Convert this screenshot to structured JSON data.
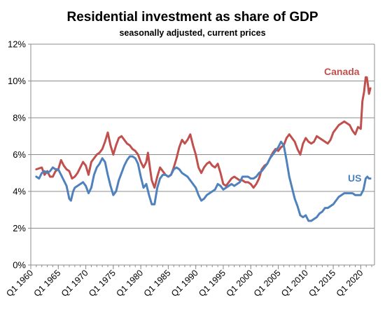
{
  "chart_data": {
    "type": "line",
    "title": "Residential investment as share of GDP",
    "subtitle": "seasonally adjusted, current prices",
    "xlabel": "",
    "ylabel": "",
    "xlim": [
      1960.0,
      2022.5
    ],
    "ylim": [
      0,
      12
    ],
    "y_ticks": [
      0,
      2,
      4,
      6,
      8,
      10,
      12
    ],
    "y_tick_labels": [
      "0%",
      "2%",
      "4%",
      "6%",
      "8%",
      "10%",
      "12%"
    ],
    "x_ticks": [
      1960,
      1965,
      1970,
      1975,
      1980,
      1985,
      1990,
      1995,
      2000,
      2005,
      2010,
      2015,
      2020
    ],
    "x_tick_labels": [
      "Q1 1960",
      "Q1 1965",
      "Q1 1970",
      "Q1 1975",
      "Q1 1980",
      "Q1 1985",
      "Q1 1990",
      "Q1 1995",
      "Q1 2000",
      "Q1 2005",
      "Q1 2010",
      "Q1 2015",
      "Q1 2020"
    ],
    "grid": "horizontal",
    "series": [
      {
        "name": "Canada",
        "color": "#c0504d",
        "points": [
          [
            1961.0,
            5.2
          ],
          [
            1962.0,
            5.3
          ],
          [
            1962.5,
            4.9
          ],
          [
            1963.0,
            5.1
          ],
          [
            1963.5,
            4.8
          ],
          [
            1964.0,
            4.8
          ],
          [
            1964.5,
            5.1
          ],
          [
            1965.0,
            5.2
          ],
          [
            1965.5,
            5.7
          ],
          [
            1966.0,
            5.4
          ],
          [
            1966.5,
            5.2
          ],
          [
            1967.0,
            5.1
          ],
          [
            1967.5,
            4.7
          ],
          [
            1968.0,
            4.8
          ],
          [
            1968.5,
            5.0
          ],
          [
            1969.0,
            5.3
          ],
          [
            1969.5,
            5.6
          ],
          [
            1970.0,
            5.4
          ],
          [
            1970.5,
            4.9
          ],
          [
            1971.0,
            5.6
          ],
          [
            1971.5,
            5.8
          ],
          [
            1972.0,
            6.0
          ],
          [
            1972.5,
            6.1
          ],
          [
            1973.0,
            6.3
          ],
          [
            1973.5,
            6.7
          ],
          [
            1974.0,
            7.2
          ],
          [
            1974.5,
            6.5
          ],
          [
            1975.0,
            6.0
          ],
          [
            1975.5,
            6.5
          ],
          [
            1976.0,
            6.9
          ],
          [
            1976.5,
            7.0
          ],
          [
            1977.0,
            6.8
          ],
          [
            1977.5,
            6.6
          ],
          [
            1978.0,
            6.5
          ],
          [
            1978.5,
            6.3
          ],
          [
            1979.0,
            6.2
          ],
          [
            1979.5,
            6.0
          ],
          [
            1980.0,
            5.6
          ],
          [
            1980.5,
            5.3
          ],
          [
            1981.0,
            5.6
          ],
          [
            1981.3,
            6.1
          ],
          [
            1981.7,
            5.2
          ],
          [
            1982.0,
            4.6
          ],
          [
            1982.5,
            4.2
          ],
          [
            1983.0,
            4.8
          ],
          [
            1983.5,
            5.3
          ],
          [
            1984.0,
            5.1
          ],
          [
            1984.5,
            4.9
          ],
          [
            1985.0,
            4.8
          ],
          [
            1985.5,
            4.9
          ],
          [
            1986.0,
            5.3
          ],
          [
            1986.5,
            5.8
          ],
          [
            1987.0,
            6.4
          ],
          [
            1987.5,
            6.8
          ],
          [
            1988.0,
            6.6
          ],
          [
            1988.5,
            6.8
          ],
          [
            1989.0,
            7.1
          ],
          [
            1989.5,
            6.5
          ],
          [
            1990.0,
            6.0
          ],
          [
            1990.5,
            5.3
          ],
          [
            1991.0,
            5.0
          ],
          [
            1991.5,
            5.3
          ],
          [
            1992.0,
            5.5
          ],
          [
            1992.5,
            5.6
          ],
          [
            1993.0,
            5.4
          ],
          [
            1993.5,
            5.3
          ],
          [
            1994.0,
            5.5
          ],
          [
            1994.5,
            5.0
          ],
          [
            1995.0,
            4.4
          ],
          [
            1995.5,
            4.3
          ],
          [
            1996.0,
            4.5
          ],
          [
            1996.5,
            4.7
          ],
          [
            1997.0,
            4.8
          ],
          [
            1997.5,
            4.7
          ],
          [
            1998.0,
            4.6
          ],
          [
            1998.5,
            4.6
          ],
          [
            1999.0,
            4.5
          ],
          [
            1999.5,
            4.5
          ],
          [
            2000.0,
            4.4
          ],
          [
            2000.5,
            4.2
          ],
          [
            2001.0,
            4.4
          ],
          [
            2001.5,
            4.7
          ],
          [
            2002.0,
            5.2
          ],
          [
            2002.5,
            5.4
          ],
          [
            2003.0,
            5.5
          ],
          [
            2003.5,
            5.8
          ],
          [
            2004.0,
            6.1
          ],
          [
            2004.5,
            6.3
          ],
          [
            2005.0,
            6.2
          ],
          [
            2005.5,
            6.4
          ],
          [
            2006.0,
            6.5
          ],
          [
            2006.5,
            6.9
          ],
          [
            2007.0,
            7.1
          ],
          [
            2007.5,
            6.9
          ],
          [
            2008.0,
            6.7
          ],
          [
            2008.5,
            6.3
          ],
          [
            2009.0,
            6.0
          ],
          [
            2009.5,
            6.6
          ],
          [
            2010.0,
            6.9
          ],
          [
            2010.5,
            6.7
          ],
          [
            2011.0,
            6.6
          ],
          [
            2011.5,
            6.7
          ],
          [
            2012.0,
            7.0
          ],
          [
            2012.5,
            6.9
          ],
          [
            2013.0,
            6.8
          ],
          [
            2013.5,
            6.7
          ],
          [
            2014.0,
            6.6
          ],
          [
            2014.5,
            6.8
          ],
          [
            2015.0,
            7.2
          ],
          [
            2015.5,
            7.4
          ],
          [
            2016.0,
            7.6
          ],
          [
            2016.5,
            7.7
          ],
          [
            2017.0,
            7.8
          ],
          [
            2017.5,
            7.7
          ],
          [
            2018.0,
            7.6
          ],
          [
            2018.5,
            7.3
          ],
          [
            2019.0,
            7.1
          ],
          [
            2019.5,
            7.5
          ],
          [
            2020.0,
            7.4
          ],
          [
            2020.3,
            8.9
          ],
          [
            2020.6,
            9.4
          ],
          [
            2020.9,
            10.2
          ],
          [
            2021.1,
            10.2
          ],
          [
            2021.3,
            9.8
          ],
          [
            2021.5,
            9.3
          ],
          [
            2021.75,
            9.6
          ]
        ]
      },
      {
        "name": "US",
        "color": "#4f81bd",
        "points": [
          [
            1961.0,
            4.8
          ],
          [
            1961.5,
            4.7
          ],
          [
            1962.0,
            5.0
          ],
          [
            1962.5,
            5.1
          ],
          [
            1963.0,
            5.0
          ],
          [
            1963.5,
            5.1
          ],
          [
            1964.0,
            5.3
          ],
          [
            1964.5,
            5.2
          ],
          [
            1965.0,
            5.2
          ],
          [
            1965.5,
            4.9
          ],
          [
            1966.0,
            4.6
          ],
          [
            1966.5,
            4.3
          ],
          [
            1967.0,
            3.6
          ],
          [
            1967.3,
            3.5
          ],
          [
            1967.7,
            4.0
          ],
          [
            1968.0,
            4.2
          ],
          [
            1968.5,
            4.3
          ],
          [
            1969.0,
            4.4
          ],
          [
            1969.5,
            4.5
          ],
          [
            1970.0,
            4.3
          ],
          [
            1970.5,
            3.9
          ],
          [
            1971.0,
            4.2
          ],
          [
            1971.5,
            4.9
          ],
          [
            1972.0,
            5.3
          ],
          [
            1972.5,
            5.5
          ],
          [
            1973.0,
            5.8
          ],
          [
            1973.5,
            5.6
          ],
          [
            1974.0,
            4.9
          ],
          [
            1974.5,
            4.3
          ],
          [
            1975.0,
            3.8
          ],
          [
            1975.5,
            4.0
          ],
          [
            1976.0,
            4.6
          ],
          [
            1976.5,
            5.0
          ],
          [
            1977.0,
            5.4
          ],
          [
            1977.5,
            5.7
          ],
          [
            1978.0,
            5.9
          ],
          [
            1978.5,
            5.9
          ],
          [
            1979.0,
            5.8
          ],
          [
            1979.5,
            5.5
          ],
          [
            1980.0,
            4.8
          ],
          [
            1980.5,
            4.2
          ],
          [
            1981.0,
            4.4
          ],
          [
            1981.5,
            3.8
          ],
          [
            1982.0,
            3.3
          ],
          [
            1982.5,
            3.3
          ],
          [
            1983.0,
            4.2
          ],
          [
            1983.5,
            4.7
          ],
          [
            1984.0,
            4.9
          ],
          [
            1984.5,
            4.9
          ],
          [
            1985.0,
            4.8
          ],
          [
            1985.5,
            4.9
          ],
          [
            1986.0,
            5.2
          ],
          [
            1986.5,
            5.3
          ],
          [
            1987.0,
            5.2
          ],
          [
            1987.5,
            5.0
          ],
          [
            1988.0,
            4.9
          ],
          [
            1988.5,
            4.8
          ],
          [
            1989.0,
            4.6
          ],
          [
            1989.5,
            4.4
          ],
          [
            1990.0,
            4.2
          ],
          [
            1990.5,
            3.8
          ],
          [
            1991.0,
            3.5
          ],
          [
            1991.5,
            3.6
          ],
          [
            1992.0,
            3.8
          ],
          [
            1992.5,
            3.9
          ],
          [
            1993.0,
            4.0
          ],
          [
            1993.5,
            4.1
          ],
          [
            1994.0,
            4.4
          ],
          [
            1994.5,
            4.3
          ],
          [
            1995.0,
            4.1
          ],
          [
            1995.5,
            4.2
          ],
          [
            1996.0,
            4.3
          ],
          [
            1996.5,
            4.4
          ],
          [
            1997.0,
            4.3
          ],
          [
            1997.5,
            4.4
          ],
          [
            1998.0,
            4.5
          ],
          [
            1998.5,
            4.8
          ],
          [
            1999.0,
            4.8
          ],
          [
            1999.5,
            4.8
          ],
          [
            2000.0,
            4.7
          ],
          [
            2000.5,
            4.7
          ],
          [
            2001.0,
            4.8
          ],
          [
            2001.5,
            5.0
          ],
          [
            2002.0,
            5.1
          ],
          [
            2002.5,
            5.3
          ],
          [
            2003.0,
            5.5
          ],
          [
            2003.5,
            5.8
          ],
          [
            2004.0,
            6.0
          ],
          [
            2004.5,
            6.2
          ],
          [
            2005.0,
            6.4
          ],
          [
            2005.5,
            6.7
          ],
          [
            2006.0,
            6.5
          ],
          [
            2006.5,
            5.7
          ],
          [
            2007.0,
            4.8
          ],
          [
            2007.5,
            4.2
          ],
          [
            2008.0,
            3.6
          ],
          [
            2008.5,
            3.2
          ],
          [
            2009.0,
            2.7
          ],
          [
            2009.5,
            2.6
          ],
          [
            2010.0,
            2.7
          ],
          [
            2010.5,
            2.4
          ],
          [
            2011.0,
            2.4
          ],
          [
            2011.5,
            2.5
          ],
          [
            2012.0,
            2.6
          ],
          [
            2012.5,
            2.8
          ],
          [
            2013.0,
            2.9
          ],
          [
            2013.5,
            3.1
          ],
          [
            2014.0,
            3.1
          ],
          [
            2014.5,
            3.2
          ],
          [
            2015.0,
            3.3
          ],
          [
            2015.5,
            3.5
          ],
          [
            2016.0,
            3.7
          ],
          [
            2016.5,
            3.8
          ],
          [
            2017.0,
            3.9
          ],
          [
            2017.5,
            3.9
          ],
          [
            2018.0,
            3.9
          ],
          [
            2018.5,
            3.9
          ],
          [
            2019.0,
            3.8
          ],
          [
            2019.5,
            3.8
          ],
          [
            2020.0,
            3.8
          ],
          [
            2020.5,
            4.1
          ],
          [
            2020.9,
            4.7
          ],
          [
            2021.2,
            4.8
          ],
          [
            2021.5,
            4.7
          ],
          [
            2021.75,
            4.7
          ]
        ]
      }
    ]
  }
}
